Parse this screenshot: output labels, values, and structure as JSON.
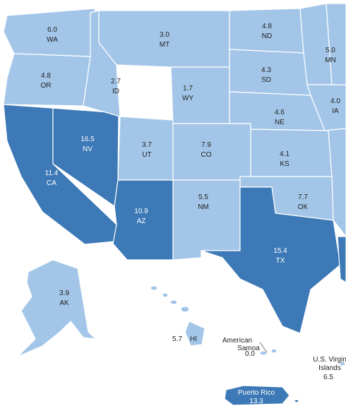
{
  "regions": [
    {
      "abbr": "WA",
      "value": "6.0"
    },
    {
      "abbr": "MT",
      "value": "3.0"
    },
    {
      "abbr": "ND",
      "value": "4.8"
    },
    {
      "abbr": "MN",
      "value": "5.0"
    },
    {
      "abbr": "OR",
      "value": "4.8"
    },
    {
      "abbr": "ID",
      "value": "2.7"
    },
    {
      "abbr": "WY",
      "value": "1.7"
    },
    {
      "abbr": "SD",
      "value": "4.3"
    },
    {
      "abbr": "IA",
      "value": "4.0"
    },
    {
      "abbr": "NE",
      "value": "4.6"
    },
    {
      "abbr": "NV",
      "value": "16.5"
    },
    {
      "abbr": "UT",
      "value": "3.7"
    },
    {
      "abbr": "CO",
      "value": "7.9"
    },
    {
      "abbr": "KS",
      "value": "4.1"
    },
    {
      "abbr": "CA",
      "value": "11.4"
    },
    {
      "abbr": "OK",
      "value": "7.7"
    },
    {
      "abbr": "AZ",
      "value": "10.9"
    },
    {
      "abbr": "NM",
      "value": "5.5"
    },
    {
      "abbr": "TX",
      "value": "15.4"
    },
    {
      "abbr": "AK",
      "value": "3.9"
    },
    {
      "abbr": "HI",
      "value": "5.7"
    },
    {
      "abbr": "American Samoa",
      "value": "0.0"
    },
    {
      "abbr": "U.S. Virgin Islands",
      "value": "6.5"
    },
    {
      "abbr": "Puerto Rico",
      "value": "13.3"
    }
  ]
}
